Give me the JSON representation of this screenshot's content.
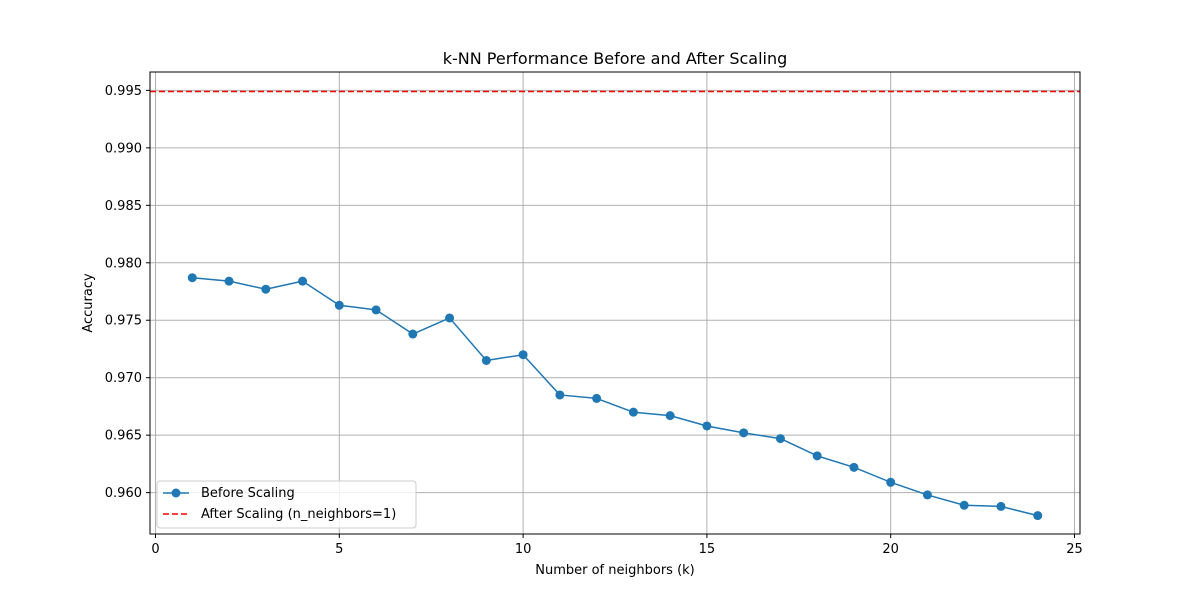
{
  "chart_data": {
    "type": "line",
    "title": "k-NN Performance Before and After Scaling",
    "xlabel": "Number of neighbors (k)",
    "ylabel": "Accuracy",
    "xlim": [
      -0.15,
      25.15
    ],
    "ylim": [
      0.9564,
      0.9966
    ],
    "xticks": [
      0,
      5,
      10,
      15,
      20,
      25
    ],
    "yticks": [
      0.96,
      0.965,
      0.97,
      0.975,
      0.98,
      0.985,
      0.99,
      0.995
    ],
    "grid": true,
    "legend_position": "lower-left",
    "series": [
      {
        "name": "Before Scaling",
        "style": "line-with-markers",
        "color": "#1f77b4",
        "x": [
          1,
          2,
          3,
          4,
          5,
          6,
          7,
          8,
          9,
          10,
          11,
          12,
          13,
          14,
          15,
          16,
          17,
          18,
          19,
          20,
          21,
          22,
          23,
          24
        ],
        "y": [
          0.9787,
          0.9784,
          0.9777,
          0.9784,
          0.9763,
          0.9759,
          0.9738,
          0.9752,
          0.9715,
          0.972,
          0.9685,
          0.9682,
          0.967,
          0.9667,
          0.9658,
          0.9652,
          0.9647,
          0.9632,
          0.9622,
          0.9609,
          0.9598,
          0.9589,
          0.9588,
          0.958
        ]
      },
      {
        "name": "After Scaling (n_neighbors=1)",
        "style": "horizontal-dashed",
        "color": "#ff0000",
        "value": 0.9949
      }
    ]
  }
}
